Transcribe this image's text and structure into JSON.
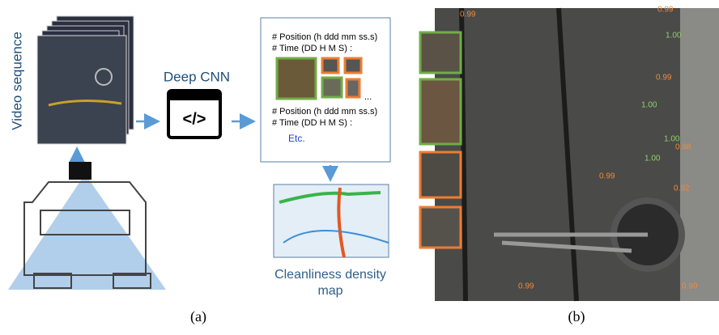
{
  "panel_a": {
    "video_label": "Video sequence",
    "cnn_label": "Deep CNN",
    "icon_text": "</>",
    "output_box": {
      "position_1": "# Position (h ddd mm ss.s)",
      "time_1": "# Time (DD H M S) :",
      "ellipsis": "...",
      "position_2": "# Position (h ddd mm ss.s)",
      "time_2": "# Time (DD H M S) :",
      "etc": "Etc."
    },
    "map_label": [
      "Cleanliness density",
      "map"
    ],
    "caption": "(a)"
  },
  "panel_b": {
    "detections": [
      "0.99",
      "0.99",
      "1.00",
      "0.99",
      "1.00",
      "1.00",
      "0.98",
      "1.00",
      "0.99",
      "0.92",
      "0.99",
      "0.99"
    ],
    "caption": "(b)"
  }
}
